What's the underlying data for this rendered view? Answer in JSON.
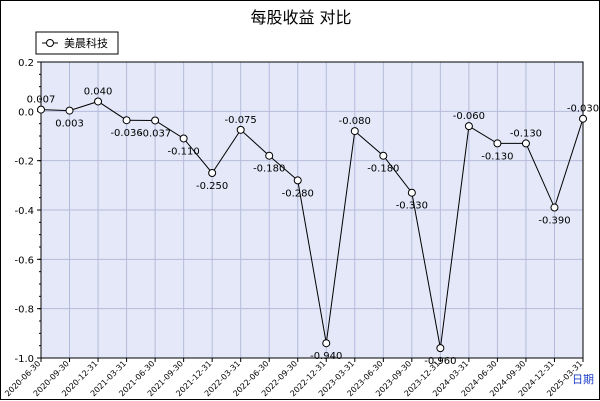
{
  "title": "每股收益  对比",
  "corner_label": "日期",
  "chart_data": {
    "type": "line",
    "title": "每股收益  对比",
    "xlabel": "日期",
    "ylabel": "",
    "ylim": [
      -1.0,
      0.2
    ],
    "y_ticks": [
      0.2,
      0.0,
      -0.2,
      -0.4,
      -0.6,
      -0.8,
      -1.0
    ],
    "y_tick_labels": [
      "0.2",
      "0.0",
      "-0.2",
      "-0.4",
      "-0.6",
      "-0.8",
      "-1.0"
    ],
    "grid": true,
    "legend_position": "top-left",
    "categories": [
      "2020-06-30",
      "2020-09-30",
      "2020-12-31",
      "2021-03-31",
      "2021-06-30",
      "2021-09-30",
      "2021-12-31",
      "2022-03-31",
      "2022-06-30",
      "2022-09-30",
      "2022-12-31",
      "2023-03-31",
      "2023-06-30",
      "2023-09-30",
      "2023-12-31",
      "2024-03-31",
      "2024-06-30",
      "2024-09-30",
      "2024-12-31",
      "2025-03-31"
    ],
    "series": [
      {
        "name": "美晨科技",
        "values": [
          0.007,
          0.003,
          0.04,
          -0.036,
          -0.037,
          -0.11,
          -0.25,
          -0.075,
          -0.18,
          -0.28,
          -0.94,
          -0.08,
          -0.18,
          -0.33,
          -0.96,
          -0.06,
          -0.13,
          -0.13,
          -0.39,
          -0.03
        ],
        "labels": [
          "0.007",
          "0.003",
          "0.040",
          "-0.036",
          "-0.037",
          "-0.110",
          "-0.250",
          "-0.075",
          "-0.180",
          "-0.280",
          "-0.940",
          "-0.080",
          "-0.180",
          "-0.330",
          "-0.960",
          "-0.060",
          "-0.130",
          "-0.130",
          "-0.390",
          "-0.030"
        ],
        "color": "#000000"
      }
    ],
    "plot_background": "#e4e8f8",
    "grid_color": "#b4bcdc",
    "corner_color": "#1e3cc8"
  }
}
